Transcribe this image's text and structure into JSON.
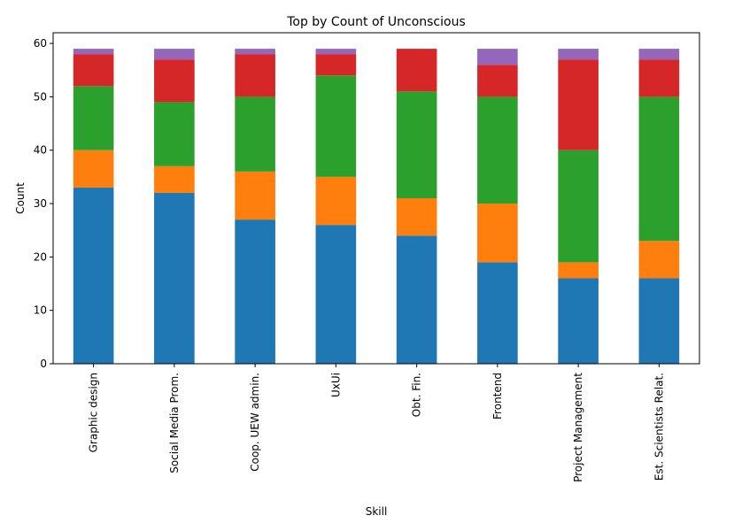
{
  "chart_data": {
    "type": "bar",
    "stacked": true,
    "title": "Top by Count of Unconscious",
    "xlabel": "Skill",
    "ylabel": "Count",
    "ylim": [
      0,
      62
    ],
    "yticks": [
      0,
      10,
      20,
      30,
      40,
      50,
      60
    ],
    "grid": false,
    "legend": "none",
    "categories": [
      "Graphic design",
      "Social Media Prom.",
      "Coop. UEW admin.",
      "UxUi",
      "Obt. Fin.",
      "Frontend",
      "Project Management",
      "Est. Scientists Relat."
    ],
    "series": [
      {
        "color": "#1f77b4",
        "values": [
          33,
          32,
          27,
          26,
          24,
          19,
          16,
          16
        ]
      },
      {
        "color": "#ff7f0e",
        "values": [
          7,
          5,
          9,
          9,
          7,
          11,
          3,
          7
        ]
      },
      {
        "color": "#2ca02c",
        "values": [
          12,
          12,
          14,
          19,
          20,
          20,
          21,
          27
        ]
      },
      {
        "color": "#d62728",
        "values": [
          6,
          8,
          8,
          4,
          8,
          6,
          17,
          7
        ]
      },
      {
        "color": "#9467bd",
        "values": [
          1,
          2,
          1,
          1,
          0,
          3,
          2,
          2
        ]
      }
    ]
  }
}
